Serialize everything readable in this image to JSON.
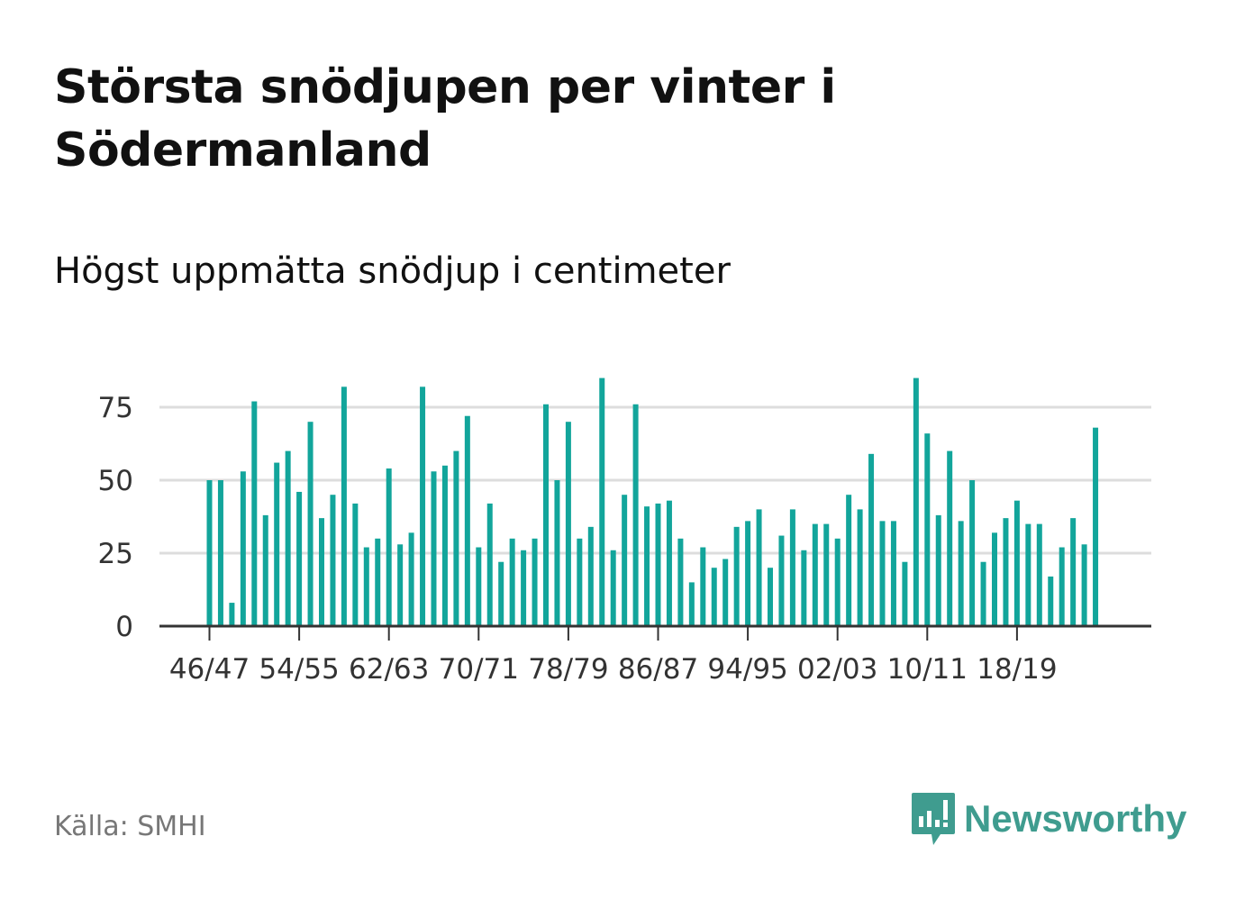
{
  "header": {
    "title": "Största snödjupen per vinter i Södermanland",
    "subtitle": "Högst uppmätta snödjup i centimeter"
  },
  "footer": {
    "source": "Källa: SMHI",
    "brand": "Newsworthy",
    "brand_icon": "bar-chart-speech-bubble-icon"
  },
  "colors": {
    "bar": "#12a59b",
    "brand": "#3f9c8f",
    "grid": "#dddddd",
    "axis": "#333333"
  },
  "chart_data": {
    "type": "bar",
    "title": "Största snödjupen per vinter i Södermanland",
    "subtitle": "Högst uppmätta snödjup i centimeter",
    "xlabel": "",
    "ylabel": "",
    "ylim": [
      0,
      85
    ],
    "yticks": [
      0,
      25,
      50,
      75
    ],
    "grid": true,
    "categories": [
      "46/47",
      "47/48",
      "48/49",
      "49/50",
      "50/51",
      "51/52",
      "52/53",
      "53/54",
      "54/55",
      "55/56",
      "56/57",
      "57/58",
      "58/59",
      "59/60",
      "60/61",
      "61/62",
      "62/63",
      "63/64",
      "64/65",
      "65/66",
      "66/67",
      "67/68",
      "68/69",
      "69/70",
      "70/71",
      "71/72",
      "72/73",
      "73/74",
      "74/75",
      "75/76",
      "76/77",
      "77/78",
      "78/79",
      "79/80",
      "80/81",
      "81/82",
      "82/83",
      "83/84",
      "84/85",
      "85/86",
      "86/87",
      "87/88",
      "88/89",
      "89/90",
      "90/91",
      "91/92",
      "92/93",
      "93/94",
      "94/95",
      "95/96",
      "96/97",
      "97/98",
      "98/99",
      "99/00",
      "00/01",
      "01/02",
      "02/03",
      "03/04",
      "04/05",
      "05/06",
      "06/07",
      "07/08",
      "08/09",
      "09/10",
      "10/11",
      "11/12",
      "12/13",
      "13/14",
      "14/15",
      "15/16",
      "16/17",
      "17/18",
      "18/19",
      "19/20",
      "20/21",
      "21/22",
      "22/23",
      "23/24",
      "24/25",
      "25/26"
    ],
    "xtick_labels": [
      "46/47",
      "54/55",
      "62/63",
      "70/71",
      "78/79",
      "86/87",
      "94/95",
      "02/03",
      "10/11",
      "18/19"
    ],
    "values": [
      50,
      50,
      8,
      53,
      77,
      38,
      56,
      60,
      46,
      70,
      37,
      45,
      82,
      42,
      27,
      30,
      54,
      28,
      32,
      82,
      53,
      55,
      60,
      72,
      27,
      42,
      22,
      30,
      26,
      30,
      76,
      50,
      70,
      30,
      34,
      85,
      26,
      45,
      76,
      41,
      42,
      43,
      30,
      15,
      27,
      20,
      23,
      34,
      36,
      40,
      20,
      31,
      40,
      26,
      35,
      35,
      30,
      45,
      40,
      59,
      36,
      36,
      22,
      85,
      66,
      38,
      60,
      36,
      50,
      22,
      32,
      37,
      43,
      35,
      35,
      17,
      27,
      37,
      28,
      68
    ]
  }
}
